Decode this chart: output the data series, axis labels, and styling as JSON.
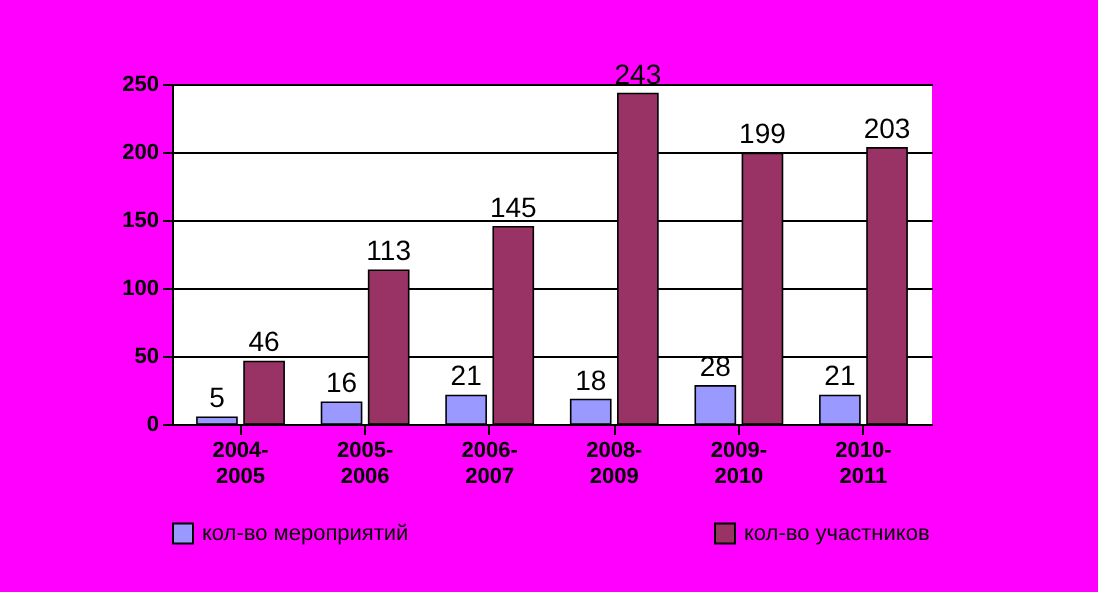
{
  "chart_data": {
    "type": "bar",
    "categories": [
      "2004-2005",
      "2005-2006",
      "2006-2007",
      "2008-2009",
      "2009-2010",
      "2010-2011"
    ],
    "series": [
      {
        "name": "кол-во мероприятий",
        "color": "#9999ff",
        "values": [
          5,
          16,
          21,
          18,
          28,
          21
        ]
      },
      {
        "name": "кол-во участников",
        "color": "#993366",
        "values": [
          46,
          113,
          145,
          243,
          199,
          203
        ]
      }
    ],
    "ylim": [
      0,
      250
    ],
    "yticks": [
      0,
      50,
      100,
      150,
      200,
      250
    ],
    "grid": "y",
    "legend": "bottom",
    "data_labels": true
  }
}
